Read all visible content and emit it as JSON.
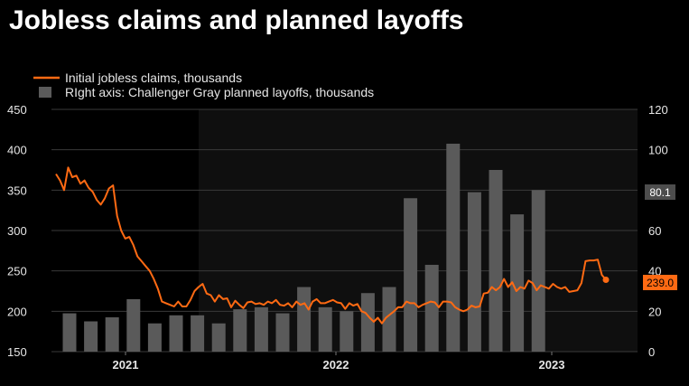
{
  "chart_data": {
    "type": "bar+line",
    "title": "Jobless claims and planned layoffs",
    "series": [
      {
        "name": "Initial jobless claims, thousands",
        "kind": "line",
        "axis": "left",
        "values": [
          370,
          362,
          350,
          378,
          366,
          368,
          358,
          362,
          353,
          348,
          338,
          332,
          340,
          352,
          356,
          318,
          300,
          290,
          292,
          282,
          268,
          262,
          256,
          250,
          240,
          228,
          212,
          210,
          208,
          206,
          212,
          206,
          206,
          214,
          225,
          230,
          234,
          222,
          220,
          212,
          220,
          215,
          216,
          205,
          213,
          208,
          204,
          211,
          212,
          209,
          210,
          208,
          212,
          210,
          214,
          208,
          207,
          210,
          205,
          212,
          208,
          210,
          202,
          212,
          215,
          210,
          210,
          212,
          214,
          211,
          210,
          203,
          210,
          207,
          209,
          200,
          198,
          192,
          187,
          192,
          185,
          192,
          196,
          200,
          205,
          205,
          212,
          210,
          210,
          205,
          208,
          210,
          212,
          211,
          205,
          212,
          212,
          211,
          205,
          202,
          200,
          202,
          207,
          205,
          206,
          222,
          223,
          230,
          226,
          230,
          240,
          230,
          236,
          225,
          230,
          228,
          238,
          235,
          226,
          232,
          230,
          228,
          234,
          230,
          228,
          230,
          224,
          225,
          226,
          235,
          262,
          263,
          263,
          264,
          245,
          239
        ],
        "last_label": "239.0",
        "color": "#ff6a13"
      },
      {
        "name": "RIght axis: Challenger Gray planned layoffs, thousands",
        "kind": "bar",
        "axis": "right",
        "values": [
          19,
          15,
          17,
          26,
          14,
          18,
          18,
          14,
          21,
          22,
          19,
          32,
          22,
          20,
          29,
          32,
          76,
          43,
          103,
          79,
          90,
          68,
          80
        ],
        "color": "#5a5a5a"
      }
    ],
    "y_left": {
      "min": 150,
      "max": 450,
      "ticks": [
        "150",
        "200",
        "250",
        "300",
        "350",
        "400",
        "450"
      ]
    },
    "y_right": {
      "min": 0,
      "max": 120,
      "ticks": [
        "0",
        "20",
        "40",
        "60",
        "80",
        "100",
        "120"
      ]
    },
    "x_labels": [
      "2021",
      "2022",
      "2023"
    ],
    "right_axis_label": "80.1",
    "grid": true,
    "legend": "top-left"
  }
}
